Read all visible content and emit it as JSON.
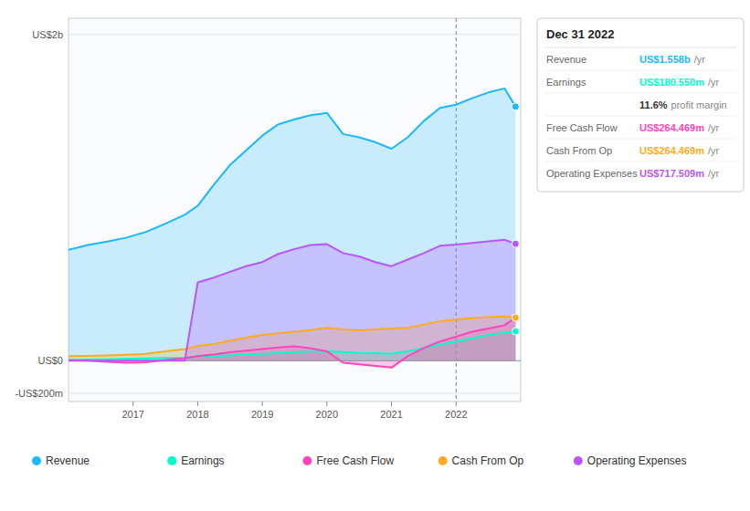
{
  "chart_data": {
    "type": "area",
    "x": [
      2016.0,
      2016.3,
      2016.6,
      2016.9,
      2017.2,
      2017.5,
      2017.8,
      2018.0,
      2018.25,
      2018.5,
      2018.75,
      2019.0,
      2019.25,
      2019.5,
      2019.75,
      2020.0,
      2020.25,
      2020.5,
      2020.75,
      2021.0,
      2021.25,
      2021.5,
      2021.75,
      2022.0,
      2022.25,
      2022.5,
      2022.75,
      2022.92
    ],
    "series": [
      {
        "name": "Revenue",
        "color": "#1ab8ff",
        "values": [
          680,
          710,
          730,
          755,
          790,
          840,
          895,
          950,
          1080,
          1200,
          1290,
          1380,
          1450,
          1480,
          1505,
          1520,
          1390,
          1370,
          1340,
          1300,
          1370,
          1470,
          1550,
          1570,
          1610,
          1645,
          1670,
          1558
        ]
      },
      {
        "name": "Earnings",
        "color": "#00ffcc",
        "values": [
          4,
          7,
          9,
          11,
          14,
          17,
          19,
          24,
          29,
          33,
          38,
          43,
          48,
          53,
          56,
          58,
          53,
          48,
          46,
          43,
          58,
          78,
          98,
          118,
          138,
          158,
          172,
          180
        ]
      },
      {
        "name": "Free Cash Flow",
        "color": "#ff44bb",
        "values": [
          3,
          1,
          -6,
          -12,
          -10,
          4,
          16,
          28,
          38,
          52,
          62,
          72,
          82,
          88,
          76,
          58,
          -12,
          -22,
          -32,
          -42,
          28,
          78,
          118,
          148,
          178,
          198,
          218,
          264
        ]
      },
      {
        "name": "Cash From Op",
        "color": "#ffaa22",
        "values": [
          28,
          30,
          33,
          37,
          42,
          58,
          72,
          90,
          102,
          122,
          142,
          158,
          168,
          178,
          188,
          202,
          192,
          186,
          192,
          197,
          202,
          222,
          242,
          252,
          262,
          268,
          272,
          264
        ]
      },
      {
        "name": "Operating Expenses",
        "color": "#bb55ff",
        "values": [
          0,
          0,
          0,
          0,
          0,
          0,
          0,
          480,
          510,
          545,
          580,
          605,
          655,
          685,
          710,
          715,
          660,
          640,
          605,
          580,
          620,
          660,
          705,
          712,
          722,
          732,
          742,
          717
        ]
      }
    ],
    "xlim": [
      2016.0,
      2023.0
    ],
    "xticks": [
      2017,
      2018,
      2019,
      2020,
      2021,
      2022
    ],
    "ylim": [
      -250,
      2100
    ],
    "yticks": [
      {
        "value": 2000,
        "label": "US$2b"
      },
      {
        "value": 0,
        "label": "US$0"
      },
      {
        "value": -200,
        "label": "-US$200m"
      }
    ],
    "reference_x": [
      2022
    ],
    "grid": true,
    "legend": "bottom",
    "annotations": [
      {
        "title": "Dec 31 2022",
        "rows": [
          {
            "label": "Revenue",
            "value": "US$1.558b",
            "suffix": "/yr"
          },
          {
            "label": "Earnings",
            "value": "US$180.550m",
            "suffix": "/yr"
          },
          {
            "value": "11.6%",
            "suffix": "profit margin"
          },
          {
            "label": "Free Cash Flow",
            "value": "US$264.469m",
            "suffix": "/yr"
          },
          {
            "label": "Cash From Op",
            "value": "US$264.469m",
            "suffix": "/yr"
          },
          {
            "label": "Operating Expenses",
            "value": "US$717.509m",
            "suffix": "/yr"
          }
        ]
      }
    ]
  }
}
